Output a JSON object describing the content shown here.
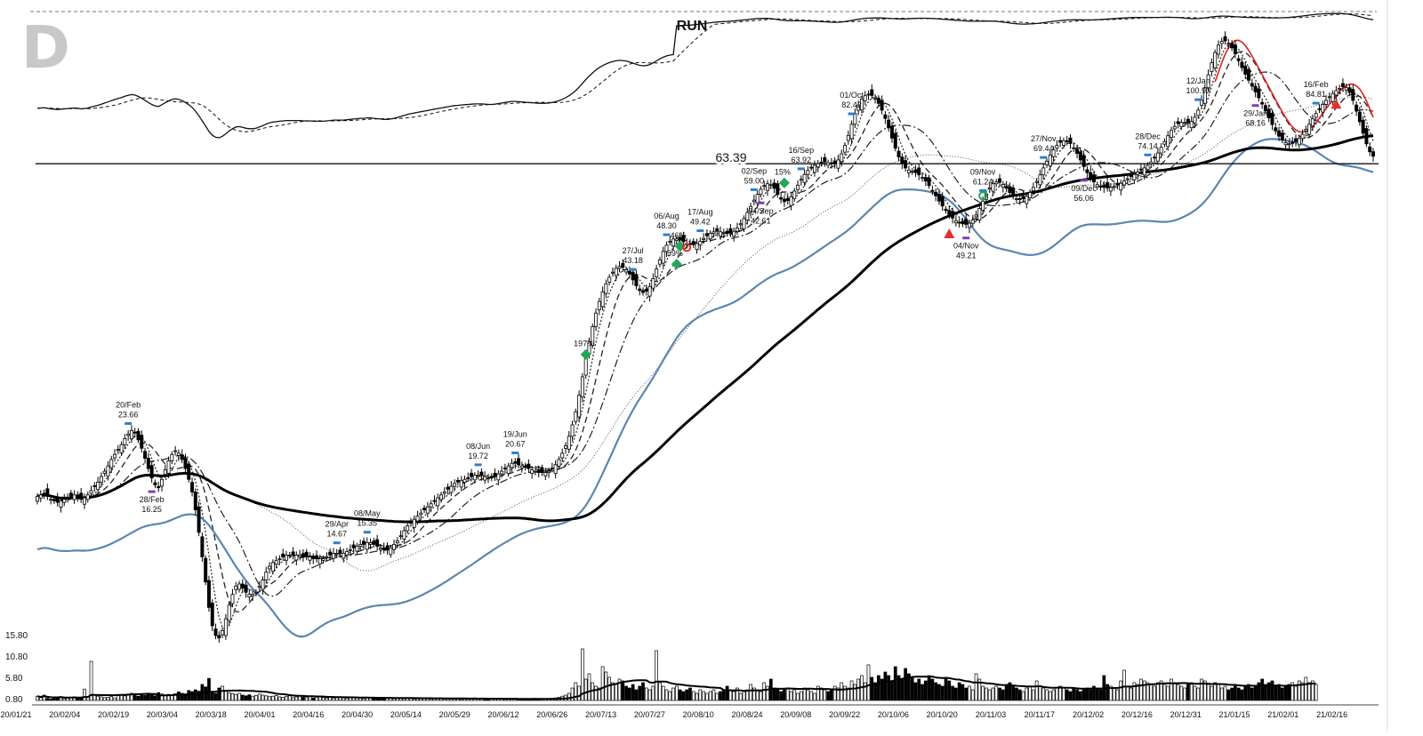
{
  "corner_letter": "D",
  "ticker": "RUN",
  "reference_line_label": "63.39",
  "chart_data": {
    "type": "candlestick",
    "ticker": "RUN",
    "price_range": [
      10,
      106
    ],
    "volume_axis_labels": [
      "15.80",
      "10.80",
      "5.80",
      "0.80"
    ],
    "volume_range": [
      0,
      22
    ],
    "x_tick_labels": [
      "20/01/21",
      "20/02/04",
      "20/02/19",
      "20/03/04",
      "20/03/18",
      "20/04/01",
      "20/04/16",
      "20/04/30",
      "20/05/14",
      "20/05/29",
      "20/06/12",
      "20/06/26",
      "20/07/13",
      "20/07/27",
      "20/08/10",
      "20/08/24",
      "20/09/08",
      "20/09/22",
      "20/10/06",
      "20/10/20",
      "20/11/03",
      "20/11/17",
      "20/12/02",
      "20/12/16",
      "20/12/31",
      "21/01/15",
      "21/02/01",
      "21/02/16"
    ],
    "reference_level": 63.39,
    "price_annotations": [
      {
        "date": "20/Feb",
        "value": "23.66",
        "kind": "high",
        "bar": 27
      },
      {
        "date": "28/Feb",
        "value": "16.25",
        "kind": "low",
        "bar": 34
      },
      {
        "date": "29/Apr",
        "value": "14.67",
        "kind": "high",
        "bar": 89
      },
      {
        "date": "08/May",
        "value": "15.35",
        "kind": "high",
        "bar": 98
      },
      {
        "date": "08/Jun",
        "value": "19.72",
        "kind": "high",
        "bar": 131
      },
      {
        "date": "19/Jun",
        "value": "20.67",
        "kind": "high",
        "bar": 142
      },
      {
        "date": "27/Jul",
        "value": "43.18",
        "kind": "high",
        "bar": 177
      },
      {
        "date": "06/Aug",
        "value": "48.30",
        "kind": "high",
        "bar": 187
      },
      {
        "date": "17/Aug",
        "value": "49.42",
        "kind": "high",
        "bar": 197
      },
      {
        "date": "02/Sep",
        "value": "59.00",
        "kind": "high",
        "bar": 213
      },
      {
        "date": "04/Sep",
        "value": "42.61",
        "kind": "low",
        "bar": 215
      },
      {
        "date": "16/Sep",
        "value": "63.92",
        "kind": "high",
        "bar": 227
      },
      {
        "date": "01/Oct",
        "value": "82.42",
        "kind": "high",
        "bar": 242
      },
      {
        "date": "04/Nov",
        "value": "49.21",
        "kind": "low",
        "bar": 276
      },
      {
        "date": "09/Nov",
        "value": "61.24",
        "kind": "high",
        "bar": 281
      },
      {
        "date": "27/Nov",
        "value": "69.44",
        "kind": "high",
        "bar": 299
      },
      {
        "date": "09/Dec",
        "value": "56.06",
        "kind": "low",
        "bar": 311
      },
      {
        "date": "28/Dec",
        "value": "74.14",
        "kind": "high",
        "bar": 330
      },
      {
        "date": "12/Jan",
        "value": "100.93",
        "kind": "high",
        "bar": 345
      },
      {
        "date": "29/Jan",
        "value": "68.16",
        "kind": "low",
        "bar": 362
      },
      {
        "date": "16/Feb",
        "value": "84.81",
        "kind": "high",
        "bar": 380
      }
    ],
    "percent_markers": [
      {
        "label": "197%",
        "bar": 163,
        "price": 31
      },
      {
        "label": "59%",
        "bar": 190,
        "price": 43.5
      },
      {
        "label": "46%",
        "bar": 191,
        "price": 46.5
      },
      {
        "label": "15%",
        "bar": 222,
        "price": 59
      }
    ],
    "close_series": [
      18.2,
      18.3,
      18.4,
      18.2,
      18.0,
      17.9,
      17.8,
      17.9,
      18.0,
      18.1,
      18.2,
      18.3,
      18.2,
      18.0,
      18.1,
      18.3,
      18.6,
      18.9,
      19.2,
      19.6,
      20.0,
      20.4,
      20.9,
      21.3,
      21.7,
      22.1,
      22.6,
      23.0,
      23.3,
      23.1,
      22.5,
      21.8,
      21.0,
      20.2,
      19.5,
      19.0,
      18.8,
      19.4,
      20.1,
      20.8,
      21.3,
      21.6,
      21.4,
      20.9,
      20.2,
      19.4,
      18.5,
      17.3,
      15.9,
      14.5,
      13.2,
      12.0,
      11.2,
      10.8,
      10.7,
      11.0,
      11.5,
      12.1,
      12.6,
      13.0,
      13.1,
      12.9,
      12.7,
      12.6,
      12.6,
      12.7,
      13.0,
      13.3,
      13.7,
      14.0,
      14.2,
      14.3,
      14.4,
      14.5,
      14.6,
      14.6,
      14.6,
      14.6,
      14.6,
      14.5,
      14.5,
      14.5,
      14.4,
      14.4,
      14.4,
      14.4,
      14.5,
      14.6,
      14.7,
      14.7,
      14.7,
      14.7,
      14.8,
      14.9,
      15.0,
      15.1,
      15.2,
      15.2,
      15.3,
      15.3,
      15.2,
      15.1,
      15.0,
      14.9,
      14.9,
      15.0,
      15.2,
      15.4,
      15.7,
      16.0,
      16.3,
      16.5,
      16.7,
      16.9,
      17.1,
      17.3,
      17.5,
      17.7,
      17.9,
      18.1,
      18.3,
      18.5,
      18.7,
      18.9,
      19.1,
      19.2,
      19.3,
      19.4,
      19.5,
      19.6,
      19.7,
      19.7,
      19.7,
      19.6,
      19.5,
      19.5,
      19.6,
      19.8,
      20.0,
      20.2,
      20.4,
      20.6,
      20.6,
      20.5,
      20.4,
      20.3,
      20.2,
      20.1,
      20.0,
      19.9,
      19.9,
      19.9,
      20.0,
      20.2,
      20.5,
      20.9,
      21.4,
      22.0,
      22.8,
      23.8,
      25.0,
      26.6,
      28.5,
      30.5,
      32.5,
      34.4,
      36.2,
      37.8,
      39.2,
      40.4,
      41.4,
      42.2,
      42.8,
      43.1,
      43.0,
      42.6,
      41.9,
      41.0,
      40.1,
      39.4,
      39.1,
      39.3,
      40.0,
      41.2,
      42.7,
      44.2,
      45.6,
      46.7,
      47.4,
      47.8,
      47.8,
      47.6,
      47.3,
      47.0,
      46.8,
      46.8,
      47.0,
      47.4,
      47.9,
      48.4,
      48.8,
      49.1,
      49.2,
      49.1,
      48.9,
      48.8,
      48.9,
      49.2,
      49.8,
      50.6,
      51.6,
      52.8,
      54.0,
      55.3,
      56.5,
      57.6,
      58.4,
      58.8,
      58.6,
      57.8,
      56.5,
      55.5,
      55.0,
      55.2,
      56.0,
      57.2,
      58.5,
      59.8,
      60.9,
      61.8,
      62.5,
      63.0,
      63.4,
      63.7,
      63.8,
      63.6,
      63.3,
      63.5,
      64.3,
      65.8,
      67.9,
      70.5,
      73.5,
      76.5,
      79.0,
      80.8,
      81.8,
      82.2,
      81.9,
      81.0,
      79.5,
      77.5,
      75.1,
      72.5,
      69.8,
      67.2,
      65.0,
      63.4,
      62.4,
      61.9,
      61.6,
      61.3,
      60.8,
      60.2,
      59.4,
      58.4,
      57.3,
      56.2,
      55.1,
      54.1,
      53.2,
      52.4,
      51.7,
      51.2,
      50.8,
      50.6,
      50.5,
      50.7,
      51.3,
      52.3,
      53.6,
      55.1,
      56.6,
      57.9,
      58.8,
      59.2,
      59.1,
      58.6,
      57.8,
      56.9,
      56.1,
      55.6,
      55.4,
      55.6,
      56.1,
      56.9,
      58.0,
      59.3,
      60.8,
      62.4,
      64.0,
      65.5,
      66.8,
      67.9,
      68.7,
      69.1,
      69.0,
      68.4,
      67.3,
      65.9,
      64.3,
      62.7,
      61.3,
      60.1,
      59.2,
      58.6,
      58.2,
      58.0,
      57.9,
      58.0,
      58.2,
      58.5,
      58.9,
      59.4,
      59.9,
      60.4,
      60.9,
      61.4,
      61.9,
      62.4,
      63.0,
      63.8,
      64.8,
      66.0,
      67.4,
      68.9,
      70.4,
      71.8,
      72.9,
      73.7,
      74.0,
      74.0,
      73.9,
      74.3,
      75.5,
      77.5,
      80.5,
      84.3,
      88.5,
      92.6,
      96.2,
      98.9,
      100.3,
      100.5,
      99.6,
      97.9,
      95.7,
      93.3,
      90.9,
      88.7,
      86.7,
      84.8,
      83.0,
      81.2,
      79.3,
      77.3,
      75.3,
      73.4,
      71.7,
      70.3,
      69.3,
      68.6,
      68.3,
      68.4,
      68.9,
      69.7,
      70.8,
      72.1,
      73.5,
      75.0,
      76.5,
      77.9,
      79.2,
      80.4,
      81.5,
      82.5,
      83.4,
      84.1,
      84.6,
      84.3,
      82.8,
      80.4,
      77.4,
      74.2,
      71.1,
      68.3,
      66.3,
      65.2
    ],
    "volume_series": [
      1.2,
      0.8,
      1.5,
      0.6,
      0.4,
      0.7,
      0.9,
      1.1,
      0.5,
      0.6,
      0.8,
      1.0,
      0.7,
      0.6,
      3.2,
      0.9,
      11.0,
      1.5,
      1.2,
      1.0,
      0.8,
      0.9,
      1.1,
      0.7,
      1.4,
      1.6,
      1.3,
      1.8,
      2.0,
      1.5,
      1.2,
      1.7,
      1.4,
      1.9,
      1.6,
      1.3,
      2.2,
      1.8,
      1.5,
      1.7,
      1.4,
      1.9,
      2.4,
      2.0,
      1.6,
      2.8,
      2.5,
      3.0,
      2.6,
      4.5,
      3.8,
      6.2,
      2.5,
      2.0,
      3.5,
      4.0,
      2.8,
      2.2,
      1.9,
      1.7,
      2.0,
      1.5,
      1.3,
      1.6,
      1.2,
      1.4,
      1.8,
      1.5,
      1.3,
      1.1,
      1.2,
      1.4,
      1.0,
      0.9,
      1.1,
      1.3,
      0.8,
      1.0,
      1.2,
      0.9,
      0.8,
      1.1,
      0.7,
      0.9,
      1.0,
      0.8,
      0.7,
      0.9,
      0.6,
      0.8,
      1.0,
      0.7,
      0.6,
      0.8,
      0.9,
      0.7,
      0.6,
      0.5,
      0.8,
      0.7,
      0.6,
      0.9,
      0.5,
      0.7,
      0.6,
      0.8,
      0.5,
      0.6,
      0.7,
      0.5,
      0.6,
      0.8,
      0.4,
      0.5,
      0.7,
      0.6,
      0.5,
      0.4,
      0.6,
      0.5,
      0.7,
      0.4,
      0.5,
      0.6,
      0.4,
      0.5,
      0.3,
      0.6,
      0.4,
      0.5,
      0.7,
      0.4,
      0.6,
      0.5,
      0.3,
      0.4,
      0.5,
      0.6,
      0.4,
      0.3,
      0.5,
      0.4,
      0.6,
      0.3,
      0.4,
      0.5,
      0.3,
      0.4,
      0.6,
      0.5,
      0.3,
      0.4,
      0.5,
      0.6,
      0.7,
      0.9,
      1.2,
      1.5,
      2.0,
      3.5,
      5.0,
      4.0,
      14.5,
      6.0,
      7.5,
      5.0,
      4.0,
      3.5,
      9.5,
      8.0,
      6.5,
      5.0,
      4.5,
      6.0,
      5.5,
      4.0,
      3.5,
      4.5,
      3.0,
      4.0,
      5.0,
      3.5,
      3.0,
      4.0,
      14.0,
      5.0,
      4.0,
      3.0,
      2.5,
      3.5,
      4.0,
      3.0,
      2.5,
      3.0,
      3.5,
      2.5,
      2.0,
      3.0,
      2.5,
      2.0,
      2.5,
      3.0,
      2.0,
      2.5,
      3.0,
      4.0,
      3.0,
      2.5,
      3.5,
      2.0,
      2.5,
      3.0,
      4.5,
      3.5,
      3.0,
      2.5,
      5.0,
      4.0,
      6.0,
      3.5,
      3.0,
      2.5,
      3.0,
      3.5,
      2.5,
      3.0,
      2.0,
      2.5,
      3.5,
      3.0,
      2.5,
      2.0,
      4.0,
      3.5,
      3.0,
      2.5,
      3.0,
      4.0,
      3.5,
      5.0,
      4.0,
      3.5,
      5.5,
      4.5,
      6.0,
      7.0,
      5.0,
      10.0,
      6.5,
      5.0,
      7.0,
      6.0,
      8.0,
      7.0,
      5.5,
      9.5,
      7.0,
      6.0,
      9.0,
      7.5,
      6.5,
      5.0,
      6.0,
      4.5,
      5.5,
      7.0,
      6.0,
      5.0,
      4.5,
      4.0,
      6.5,
      5.5,
      4.0,
      3.5,
      5.0,
      4.5,
      3.5,
      4.0,
      3.0,
      7.5,
      6.0,
      4.0,
      3.5,
      3.0,
      3.5,
      4.0,
      3.5,
      3.0,
      4.5,
      5.0,
      4.0,
      3.5,
      3.0,
      2.5,
      3.5,
      4.0,
      3.0,
      5.5,
      4.0,
      3.5,
      3.0,
      2.5,
      3.0,
      3.5,
      4.0,
      3.5,
      3.0,
      2.5,
      3.5,
      3.0,
      2.5,
      3.0,
      3.5,
      3.0,
      4.0,
      3.5,
      3.0,
      7.0,
      4.5,
      4.0,
      3.5,
      3.0,
      5.5,
      8.5,
      4.0,
      3.5,
      5.0,
      4.5,
      6.0,
      5.5,
      5.0,
      4.5,
      4.0,
      5.0,
      5.5,
      4.5,
      4.0,
      6.0,
      5.0,
      4.5,
      4.0,
      3.5,
      4.5,
      5.0,
      4.0,
      3.5,
      6.0,
      5.5,
      4.5,
      4.0,
      5.0,
      4.5,
      3.5,
      4.0,
      3.0,
      3.5,
      4.0,
      3.5,
      3.0,
      4.0,
      4.5,
      3.5,
      4.0,
      5.0,
      6.0,
      4.5,
      5.0,
      5.5,
      4.0,
      4.5,
      3.5,
      4.0,
      4.5,
      5.0,
      4.0,
      5.5,
      5.0,
      6.5,
      5.0,
      5.5,
      4.5
    ]
  }
}
